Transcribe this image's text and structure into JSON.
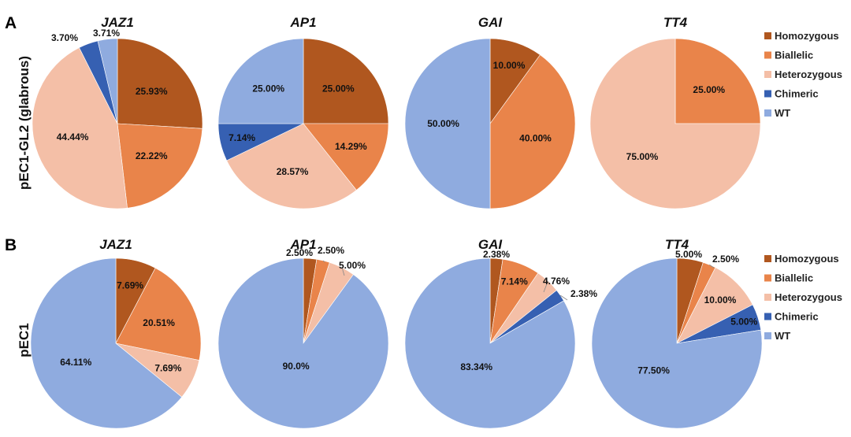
{
  "figure": {
    "panels": [
      {
        "letter": "A",
        "row_label": "pEC1-GL2 (glabrous)"
      },
      {
        "letter": "B",
        "row_label": "pEC1"
      }
    ]
  },
  "legend": {
    "categories": [
      "Homozygous",
      "Biallelic",
      "Heterozygous",
      "Chimeric",
      "WT"
    ],
    "colors": [
      "#b0571f",
      "#e9844a",
      "#f4bfa7",
      "#3660b2",
      "#8fabdf"
    ]
  },
  "chart_data": [
    {
      "type": "pie",
      "panel": "A",
      "title": "JAZ1",
      "values": [
        25.93,
        22.22,
        44.44,
        3.7,
        3.71
      ],
      "labels": [
        "25.93%",
        "22.22%",
        "44.44%",
        "3.70%",
        "3.71%"
      ]
    },
    {
      "type": "pie",
      "panel": "A",
      "title": "AP1",
      "values": [
        25.0,
        14.29,
        28.57,
        7.14,
        25.0
      ],
      "labels": [
        "25.00%",
        "14.29%",
        "28.57%",
        "7.14%",
        "25.00%"
      ]
    },
    {
      "type": "pie",
      "panel": "A",
      "title": "GAI",
      "values": [
        10.0,
        40.0,
        0,
        0,
        50.0
      ],
      "labels": [
        "10.00%",
        "40.00%",
        "",
        "",
        "50.00%"
      ]
    },
    {
      "type": "pie",
      "panel": "A",
      "title": "TT4",
      "values": [
        0,
        25.0,
        75.0,
        0,
        0
      ],
      "labels": [
        "",
        "25.00%",
        "75.00%",
        "",
        ""
      ]
    },
    {
      "type": "pie",
      "panel": "B",
      "title": "JAZ1",
      "values": [
        7.69,
        20.51,
        7.69,
        0,
        64.11
      ],
      "labels": [
        "7.69%",
        "20.51%",
        "7.69%",
        "",
        "64.11%"
      ]
    },
    {
      "type": "pie",
      "panel": "B",
      "title": "AP1",
      "values": [
        2.5,
        2.5,
        5.0,
        0,
        90.0
      ],
      "labels": [
        "2.50%",
        "2.50%",
        "5.00%",
        "",
        "90.0%"
      ]
    },
    {
      "type": "pie",
      "panel": "B",
      "title": "GAI",
      "values": [
        2.38,
        7.14,
        4.76,
        2.38,
        83.34
      ],
      "labels": [
        "2.38%",
        "7.14%",
        "4.76%",
        "2.38%",
        "83.34%"
      ]
    },
    {
      "type": "pie",
      "panel": "B",
      "title": "TT4",
      "values": [
        5.0,
        2.5,
        10.0,
        5.0,
        77.5
      ],
      "labels": [
        "5.00%",
        "2.50%",
        "10.00%",
        "5.00%",
        "77.50%"
      ]
    }
  ]
}
